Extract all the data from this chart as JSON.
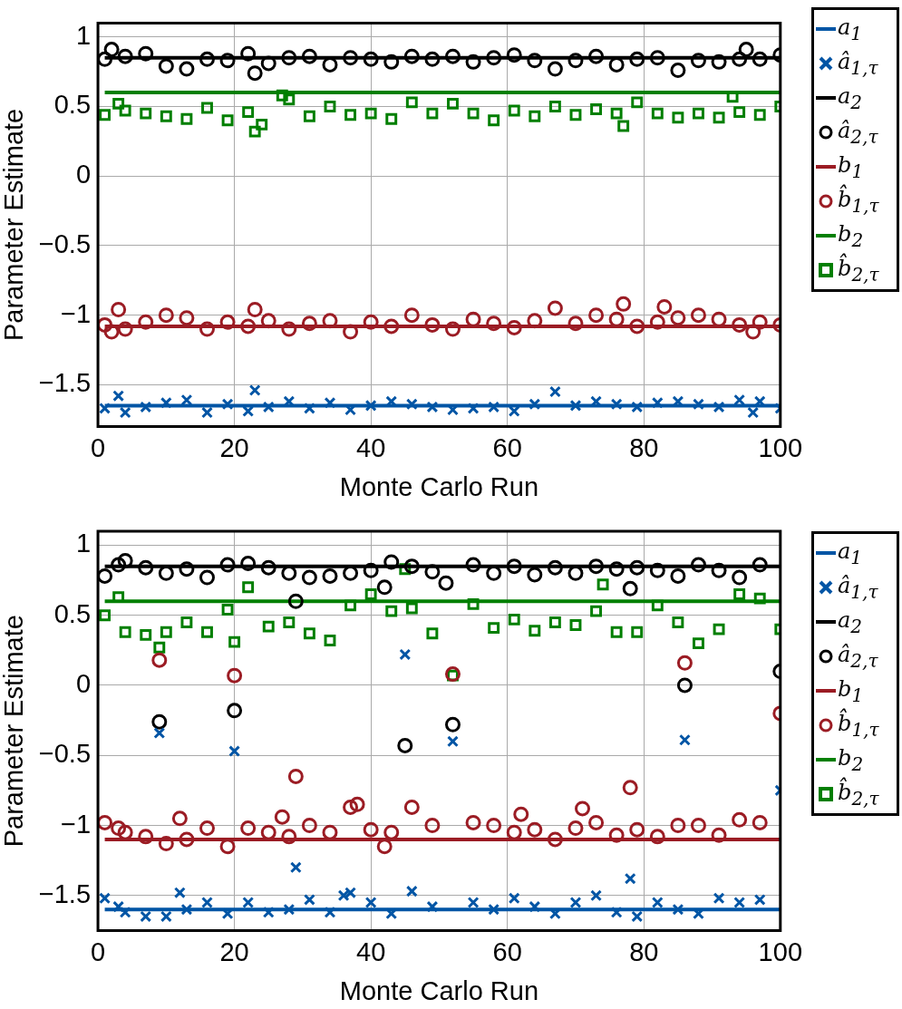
{
  "chart_data": [
    {
      "type": "scatter",
      "xlabel": "Monte Carlo Run",
      "ylabel": "Parameter Estimate",
      "xlim": [
        0,
        100
      ],
      "xticks": [
        0,
        20,
        40,
        60,
        80,
        100
      ],
      "ylim": [
        -1.8,
        1.1
      ],
      "yticks": [
        -1.5,
        -1,
        -0.5,
        0,
        0.5,
        1
      ],
      "grid": true,
      "legend": "right",
      "series": [
        {
          "name": "a$_{1}$",
          "type": "line",
          "marker": "none",
          "color": "#0055a5",
          "x": [
            1,
            100
          ],
          "values": [
            -1.65,
            -1.65
          ]
        },
        {
          "name": "â$_{1,τ}$",
          "type": "scatter",
          "marker": "cross",
          "color": "#0055a5",
          "x": [
            1,
            3,
            4,
            7,
            10,
            13,
            16,
            19,
            22,
            23,
            25,
            28,
            31,
            34,
            37,
            40,
            43,
            46,
            49,
            52,
            55,
            58,
            61,
            64,
            67,
            70,
            73,
            76,
            79,
            82,
            85,
            88,
            91,
            94,
            96,
            97,
            100
          ],
          "values": [
            -1.67,
            -1.58,
            -1.7,
            -1.66,
            -1.63,
            -1.61,
            -1.7,
            -1.64,
            -1.69,
            -1.54,
            -1.66,
            -1.62,
            -1.67,
            -1.63,
            -1.68,
            -1.65,
            -1.62,
            -1.64,
            -1.66,
            -1.68,
            -1.67,
            -1.66,
            -1.69,
            -1.64,
            -1.55,
            -1.65,
            -1.62,
            -1.64,
            -1.66,
            -1.63,
            -1.62,
            -1.64,
            -1.66,
            -1.61,
            -1.7,
            -1.62,
            -1.67
          ]
        },
        {
          "name": "a$_{2}$",
          "type": "line",
          "marker": "none",
          "color": "#000000",
          "x": [
            1,
            100
          ],
          "values": [
            0.85,
            0.85
          ]
        },
        {
          "name": "â$_{2,τ}$",
          "type": "scatter",
          "marker": "circle",
          "color": "#000000",
          "x": [
            1,
            2,
            4,
            7,
            10,
            13,
            16,
            19,
            22,
            23,
            25,
            28,
            31,
            34,
            37,
            40,
            43,
            46,
            49,
            52,
            55,
            58,
            61,
            64,
            67,
            70,
            73,
            76,
            79,
            82,
            85,
            88,
            91,
            94,
            95,
            97,
            100
          ],
          "values": [
            0.84,
            0.91,
            0.86,
            0.88,
            0.79,
            0.77,
            0.84,
            0.83,
            0.88,
            0.74,
            0.81,
            0.85,
            0.86,
            0.8,
            0.85,
            0.84,
            0.82,
            0.86,
            0.84,
            0.86,
            0.82,
            0.85,
            0.87,
            0.83,
            0.77,
            0.83,
            0.86,
            0.8,
            0.84,
            0.85,
            0.76,
            0.83,
            0.82,
            0.84,
            0.91,
            0.84,
            0.87
          ]
        },
        {
          "name": "b$_{1}$",
          "type": "line",
          "marker": "none",
          "color": "#9b1c24",
          "x": [
            1,
            100
          ],
          "values": [
            -1.08,
            -1.08
          ]
        },
        {
          "name": "b̂$_{1,τ}$",
          "type": "scatter",
          "marker": "circle",
          "color": "#9b1c24",
          "x": [
            1,
            2,
            3,
            4,
            7,
            10,
            13,
            16,
            19,
            22,
            23,
            25,
            28,
            31,
            34,
            37,
            40,
            43,
            46,
            49,
            52,
            55,
            58,
            61,
            64,
            67,
            70,
            73,
            76,
            77,
            79,
            82,
            83,
            85,
            88,
            91,
            94,
            96,
            97,
            100
          ],
          "values": [
            -1.07,
            -1.12,
            -0.96,
            -1.1,
            -1.05,
            -1.0,
            -1.02,
            -1.1,
            -1.05,
            -1.08,
            -0.96,
            -1.04,
            -1.1,
            -1.06,
            -1.04,
            -1.12,
            -1.05,
            -1.08,
            -1.0,
            -1.07,
            -1.1,
            -1.03,
            -1.06,
            -1.09,
            -1.04,
            -0.95,
            -1.06,
            -1.0,
            -1.03,
            -0.92,
            -1.08,
            -1.05,
            -0.94,
            -1.02,
            -1.0,
            -1.03,
            -1.07,
            -1.12,
            -1.05,
            -1.07
          ]
        },
        {
          "name": "b$_{2}$",
          "type": "line",
          "marker": "none",
          "color": "#007f00",
          "x": [
            1,
            100
          ],
          "values": [
            0.6,
            0.6
          ]
        },
        {
          "name": "b̂$_{2,τ}$",
          "type": "scatter",
          "marker": "square",
          "color": "#007f00",
          "x": [
            1,
            3,
            4,
            7,
            10,
            13,
            16,
            19,
            22,
            23,
            24,
            27,
            28,
            31,
            34,
            37,
            40,
            43,
            46,
            49,
            52,
            55,
            58,
            61,
            64,
            67,
            70,
            73,
            76,
            77,
            79,
            82,
            85,
            88,
            91,
            93,
            94,
            97,
            100
          ],
          "values": [
            0.44,
            0.52,
            0.47,
            0.45,
            0.43,
            0.41,
            0.49,
            0.4,
            0.46,
            0.32,
            0.37,
            0.58,
            0.55,
            0.43,
            0.5,
            0.44,
            0.45,
            0.41,
            0.53,
            0.45,
            0.52,
            0.45,
            0.4,
            0.47,
            0.43,
            0.5,
            0.44,
            0.48,
            0.45,
            0.36,
            0.53,
            0.45,
            0.42,
            0.45,
            0.42,
            0.57,
            0.46,
            0.44,
            0.5
          ]
        }
      ]
    },
    {
      "type": "scatter",
      "xlabel": "Monte Carlo Run",
      "ylabel": "Parameter Estimate",
      "xlim": [
        0,
        100
      ],
      "xticks": [
        0,
        20,
        40,
        60,
        80,
        100
      ],
      "ylim": [
        -1.75,
        1.1
      ],
      "yticks": [
        -1.5,
        -1,
        -0.5,
        0,
        0.5,
        1
      ],
      "grid": true,
      "legend": "right",
      "series": [
        {
          "name": "a$_{1}$",
          "type": "line",
          "marker": "none",
          "color": "#0055a5",
          "x": [
            1,
            100
          ],
          "values": [
            -1.6,
            -1.6
          ]
        },
        {
          "name": "â$_{1,τ}$",
          "type": "scatter",
          "marker": "cross",
          "color": "#0055a5",
          "x": [
            1,
            3,
            4,
            7,
            9,
            10,
            12,
            13,
            16,
            19,
            20,
            22,
            25,
            28,
            29,
            31,
            34,
            36,
            37,
            40,
            43,
            45,
            46,
            49,
            52,
            55,
            58,
            61,
            64,
            67,
            70,
            73,
            76,
            78,
            79,
            82,
            85,
            86,
            88,
            91,
            94,
            97,
            100
          ],
          "values": [
            -1.52,
            -1.58,
            -1.62,
            -1.65,
            -0.34,
            -1.65,
            -1.48,
            -1.6,
            -1.55,
            -1.63,
            -0.47,
            -1.55,
            -1.62,
            -1.6,
            -1.3,
            -1.53,
            -1.62,
            -1.5,
            -1.48,
            -1.55,
            -1.63,
            0.22,
            -1.47,
            -1.58,
            -0.4,
            -1.55,
            -1.6,
            -1.52,
            -1.58,
            -1.63,
            -1.55,
            -1.5,
            -1.62,
            -1.38,
            -1.65,
            -1.55,
            -1.6,
            -0.39,
            -1.63,
            -1.52,
            -1.55,
            -1.53,
            -0.75
          ]
        },
        {
          "name": "a$_{2}$",
          "type": "line",
          "marker": "none",
          "color": "#000000",
          "x": [
            1,
            100
          ],
          "values": [
            0.85,
            0.85
          ]
        },
        {
          "name": "â$_{2,τ}$",
          "type": "scatter",
          "marker": "circle",
          "color": "#000000",
          "x": [
            1,
            3,
            4,
            7,
            9,
            10,
            13,
            16,
            19,
            20,
            22,
            25,
            28,
            29,
            31,
            34,
            37,
            40,
            42,
            43,
            45,
            46,
            49,
            51,
            52,
            55,
            58,
            61,
            64,
            67,
            70,
            73,
            76,
            78,
            79,
            82,
            85,
            86,
            88,
            91,
            94,
            97,
            100
          ],
          "values": [
            0.78,
            0.86,
            0.89,
            0.84,
            -0.26,
            0.8,
            0.83,
            0.77,
            0.86,
            -0.18,
            0.87,
            0.84,
            0.8,
            0.6,
            0.77,
            0.78,
            0.8,
            0.82,
            0.7,
            0.88,
            -0.43,
            0.85,
            0.81,
            0.73,
            -0.28,
            0.86,
            0.8,
            0.85,
            0.79,
            0.84,
            0.8,
            0.85,
            0.83,
            0.69,
            0.84,
            0.82,
            0.78,
            0.0,
            0.86,
            0.82,
            0.77,
            0.86,
            0.1
          ]
        },
        {
          "name": "b$_{1}$",
          "type": "line",
          "marker": "none",
          "color": "#9b1c24",
          "x": [
            1,
            100
          ],
          "values": [
            -1.1,
            -1.1
          ]
        },
        {
          "name": "b̂$_{1,τ}$",
          "type": "scatter",
          "marker": "circle",
          "color": "#9b1c24",
          "x": [
            1,
            3,
            4,
            7,
            9,
            10,
            12,
            13,
            16,
            19,
            20,
            22,
            25,
            27,
            28,
            29,
            31,
            34,
            37,
            38,
            40,
            42,
            43,
            46,
            49,
            52,
            55,
            58,
            61,
            62,
            64,
            67,
            70,
            71,
            73,
            76,
            78,
            79,
            82,
            85,
            86,
            88,
            91,
            94,
            97,
            100
          ],
          "values": [
            -0.98,
            -1.02,
            -1.05,
            -1.08,
            0.18,
            -1.13,
            -0.95,
            -1.1,
            -1.02,
            -1.15,
            0.07,
            -1.02,
            -1.05,
            -0.94,
            -1.08,
            -0.65,
            -1.0,
            -1.05,
            -0.87,
            -0.85,
            -1.03,
            -1.15,
            -1.05,
            -0.87,
            -1.0,
            0.08,
            -0.98,
            -1.0,
            -1.05,
            -0.92,
            -1.03,
            -1.1,
            -1.02,
            -0.88,
            -0.98,
            -1.07,
            -0.73,
            -1.03,
            -1.08,
            -1.0,
            0.16,
            -1.0,
            -1.07,
            -0.96,
            -0.98,
            -0.2
          ]
        },
        {
          "name": "b$_{2}$",
          "type": "line",
          "marker": "none",
          "color": "#007f00",
          "x": [
            1,
            100
          ],
          "values": [
            0.6,
            0.6
          ]
        },
        {
          "name": "b̂$_{2,τ}$",
          "type": "scatter",
          "marker": "square",
          "color": "#007f00",
          "x": [
            1,
            3,
            4,
            7,
            9,
            10,
            13,
            16,
            19,
            20,
            22,
            25,
            28,
            31,
            34,
            37,
            40,
            43,
            45,
            46,
            49,
            52,
            55,
            58,
            61,
            64,
            67,
            70,
            73,
            74,
            76,
            79,
            82,
            85,
            88,
            91,
            94,
            97,
            100
          ],
          "values": [
            0.5,
            0.63,
            0.38,
            0.36,
            0.27,
            0.38,
            0.45,
            0.38,
            0.54,
            0.31,
            0.7,
            0.42,
            0.45,
            0.37,
            0.32,
            0.57,
            0.65,
            0.53,
            0.83,
            0.55,
            0.37,
            0.07,
            0.58,
            0.41,
            0.47,
            0.39,
            0.45,
            0.43,
            0.53,
            0.72,
            0.38,
            0.38,
            0.57,
            0.45,
            0.3,
            0.4,
            0.65,
            0.62,
            0.4
          ]
        }
      ]
    }
  ]
}
